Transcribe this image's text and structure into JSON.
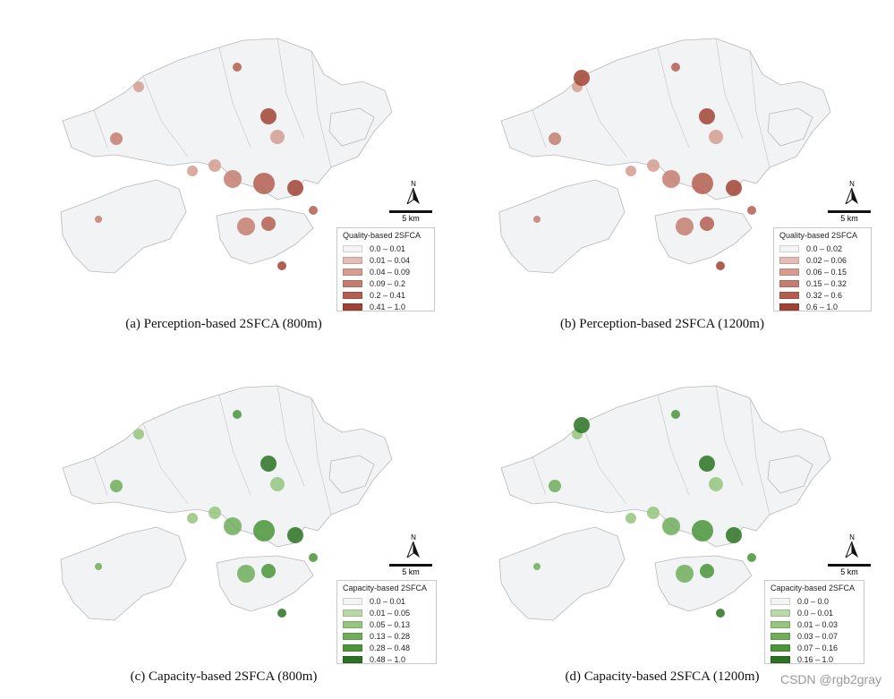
{
  "panels": [
    {
      "caption": "(a) Perception-based 2SFCA (800m)",
      "legend_title": "Quality-based 2SFCA",
      "classes": [
        "0.0 – 0.01",
        "0.01 – 0.04",
        "0.04 – 0.09",
        "0.09 – 0.2",
        "0.2 – 0.41",
        "0.41 – 1.0"
      ],
      "colors": [
        "#f4f4f4",
        "#e3bdb5",
        "#d59c90",
        "#c67d6f",
        "#b45e50",
        "#a14334"
      ],
      "north_label": "N",
      "scale_label": "5 km"
    },
    {
      "caption": "(b) Perception-based 2SFCA (1200m)",
      "legend_title": "Quality-based 2SFCA",
      "classes": [
        "0.0 – 0.02",
        "0.02 – 0.06",
        "0.06 – 0.15",
        "0.15 – 0.32",
        "0.32 – 0.6",
        "0.6 – 1.0"
      ],
      "colors": [
        "#f4f4f4",
        "#e3bdb5",
        "#d59c90",
        "#c67d6f",
        "#b45e50",
        "#a14334"
      ],
      "north_label": "N",
      "scale_label": "5 km"
    },
    {
      "caption": "(c) Capacity-based 2SFCA (800m)",
      "legend_title": "Capacity-based 2SFCA",
      "classes": [
        "0.0 – 0.01",
        "0.01 – 0.05",
        "0.05 – 0.13",
        "0.13 – 0.28",
        "0.28 – 0.48",
        "0.48 – 1.0"
      ],
      "colors": [
        "#f4f4f4",
        "#b9d8a8",
        "#95c47f",
        "#6fad5a",
        "#4a943a",
        "#2a7322"
      ],
      "north_label": "N",
      "scale_label": "5 km"
    },
    {
      "caption": "(d) Capacity-based 2SFCA (1200m)",
      "legend_title": "Capacity-based 2SFCA",
      "classes": [
        "0.0 – 0.0",
        "0.0 – 0.01",
        "0.01 – 0.03",
        "0.03 – 0.07",
        "0.07 – 0.16",
        "0.16 – 1.0"
      ],
      "colors": [
        "#f4f4f4",
        "#b9d8a8",
        "#95c47f",
        "#6fad5a",
        "#4a943a",
        "#2a7322"
      ],
      "north_label": "N",
      "scale_label": "5 km"
    }
  ],
  "watermark": "CSDN @rgb2gray"
}
